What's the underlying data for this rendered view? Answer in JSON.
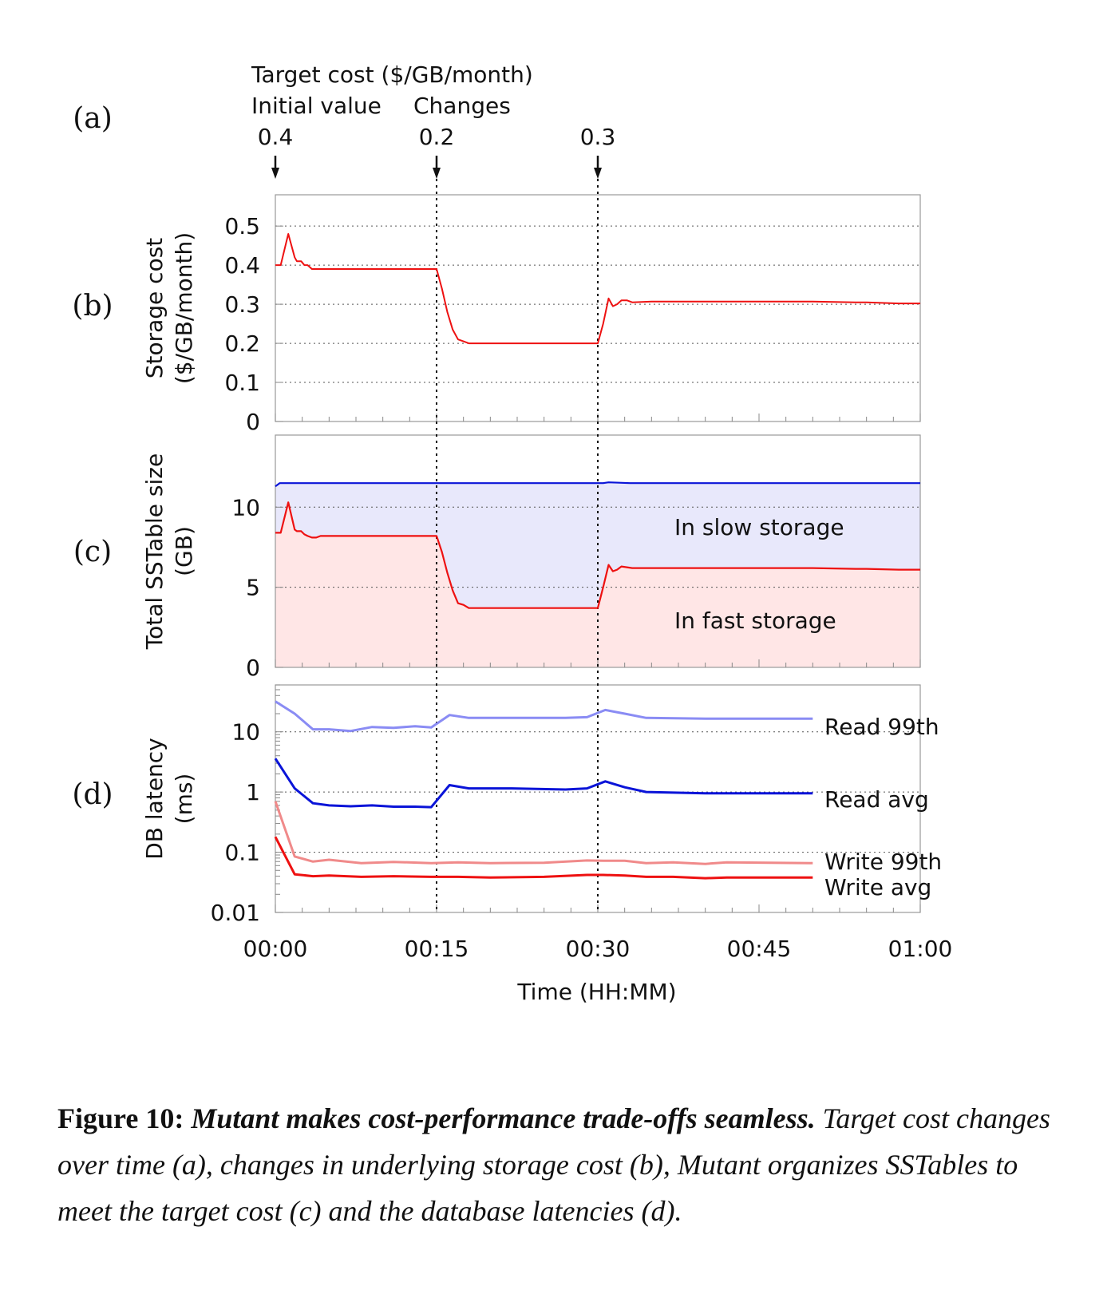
{
  "chart_data": [
    {
      "panel": "(a)",
      "type": "annotation",
      "title_line1": "Target cost ($/GB/month)",
      "col1_header": "Initial value",
      "col2_header": "Changes",
      "markers": [
        {
          "time_min": 0,
          "label": "0.4"
        },
        {
          "time_min": 15,
          "label": "0.2"
        },
        {
          "time_min": 30,
          "label": "0.3"
        }
      ]
    },
    {
      "panel": "(b)",
      "type": "line",
      "ylabel_line1": "Storage cost",
      "ylabel_line2": "($/GB/month)",
      "ylim": [
        0,
        0.58
      ],
      "yticks": [
        {
          "v": 0,
          "label": "0"
        },
        {
          "v": 0.1,
          "label": "0.1"
        },
        {
          "v": 0.2,
          "label": "0.2"
        },
        {
          "v": 0.3,
          "label": "0.3"
        },
        {
          "v": 0.4,
          "label": "0.4"
        },
        {
          "v": 0.5,
          "label": "0.5"
        }
      ],
      "color": "#ee1111",
      "x": [
        0,
        0.5,
        1.2,
        1.8,
        2.0,
        2.4,
        2.7,
        3.0,
        3.4,
        3.8,
        4.2,
        5,
        10,
        15,
        15.5,
        16,
        16.5,
        17,
        17.5,
        18,
        20,
        25,
        30,
        30.5,
        31,
        31.4,
        31.8,
        32.2,
        32.7,
        33.2,
        35,
        40,
        50,
        54,
        55,
        58,
        60
      ],
      "y": [
        0.4,
        0.4,
        0.48,
        0.42,
        0.41,
        0.41,
        0.4,
        0.4,
        0.39,
        0.39,
        0.39,
        0.39,
        0.39,
        0.39,
        0.34,
        0.28,
        0.235,
        0.21,
        0.205,
        0.2,
        0.2,
        0.2,
        0.2,
        0.25,
        0.315,
        0.295,
        0.3,
        0.31,
        0.31,
        0.305,
        0.307,
        0.307,
        0.307,
        0.305,
        0.305,
        0.302,
        0.302
      ]
    },
    {
      "panel": "(c)",
      "type": "area",
      "ylabel_line1": "Total SSTable size",
      "ylabel_line2": "(GB)",
      "ylim": [
        0,
        14.5
      ],
      "yticks": [
        {
          "v": 0,
          "label": "0"
        },
        {
          "v": 5,
          "label": "5"
        },
        {
          "v": 10,
          "label": "10"
        }
      ],
      "series": [
        {
          "name": "In fast storage",
          "color": "#ee1111",
          "fill": "#ffe6e6",
          "x": [
            0,
            0.5,
            1.2,
            1.8,
            2.0,
            2.4,
            2.7,
            3.0,
            3.4,
            3.8,
            4.2,
            5,
            10,
            15,
            15.5,
            16,
            16.5,
            17,
            17.5,
            18,
            20,
            25,
            30,
            30.5,
            31,
            31.4,
            31.8,
            32.2,
            32.7,
            33.2,
            35,
            40,
            50,
            54,
            55,
            58,
            60
          ],
          "y": [
            8.4,
            8.4,
            10.3,
            8.6,
            8.5,
            8.5,
            8.3,
            8.2,
            8.1,
            8.1,
            8.2,
            8.2,
            8.2,
            8.2,
            7.2,
            5.9,
            4.8,
            4.0,
            3.9,
            3.7,
            3.7,
            3.7,
            3.7,
            5.0,
            6.4,
            6.0,
            6.1,
            6.3,
            6.25,
            6.2,
            6.2,
            6.2,
            6.2,
            6.15,
            6.15,
            6.1,
            6.1
          ]
        },
        {
          "name": "In slow storage",
          "color": "#0a14d8",
          "fill": "#e8e8fb",
          "x": [
            0,
            0.4,
            1,
            5,
            15,
            30,
            30.5,
            31,
            33,
            60
          ],
          "y": [
            11.3,
            11.5,
            11.5,
            11.5,
            11.5,
            11.5,
            11.5,
            11.55,
            11.5,
            11.5
          ]
        }
      ],
      "annotations": {
        "slow": "In slow storage",
        "fast": "In fast storage"
      }
    },
    {
      "panel": "(d)",
      "type": "line",
      "yscale": "log",
      "ylabel_line1": "DB latency",
      "ylabel_line2": "(ms)",
      "ylim": [
        0.01,
        60
      ],
      "yticks": [
        {
          "v": 0.01,
          "label": "0.01"
        },
        {
          "v": 0.1,
          "label": "0.1"
        },
        {
          "v": 1,
          "label": "1"
        },
        {
          "v": 10,
          "label": "10"
        }
      ],
      "xlabel": "Time (HH:MM)",
      "xlim": [
        0,
        60
      ],
      "xticks": [
        {
          "v": 0,
          "label": "00:00"
        },
        {
          "v": 15,
          "label": "00:15"
        },
        {
          "v": 30,
          "label": "00:30"
        },
        {
          "v": 45,
          "label": "00:45"
        },
        {
          "v": 60,
          "label": "01:00"
        }
      ],
      "series": [
        {
          "name": "Read 99th",
          "color": "#8a8cf4",
          "x": [
            0,
            1.8,
            3.5,
            5,
            7,
            9,
            11,
            13,
            14.5,
            16.2,
            18,
            22,
            27,
            29,
            30.7,
            32.5,
            34.5,
            40,
            45,
            50
          ],
          "y": [
            32,
            20,
            11,
            11,
            10.3,
            12,
            11.6,
            12.4,
            11.8,
            19,
            17,
            17,
            17,
            17.5,
            23,
            20,
            17,
            16.5,
            16.5,
            16.5
          ]
        },
        {
          "name": "Read avg",
          "color": "#0a14d8",
          "x": [
            0,
            1.8,
            3.5,
            5,
            7,
            9,
            11,
            13,
            14.5,
            16.2,
            18,
            22,
            27,
            29,
            30.7,
            32.5,
            34.5,
            40,
            45,
            50
          ],
          "y": [
            3.6,
            1.15,
            0.65,
            0.6,
            0.58,
            0.6,
            0.57,
            0.57,
            0.56,
            1.3,
            1.15,
            1.15,
            1.1,
            1.15,
            1.5,
            1.2,
            1.0,
            0.95,
            0.95,
            0.95
          ]
        },
        {
          "name": "Write 99th",
          "color": "#f08a8a",
          "x": [
            0,
            1.8,
            3.5,
            5,
            8,
            11,
            14.5,
            17,
            20,
            25,
            29,
            30.5,
            32.5,
            34.5,
            37,
            40,
            42,
            46,
            50
          ],
          "y": [
            0.7,
            0.085,
            0.07,
            0.075,
            0.066,
            0.069,
            0.066,
            0.068,
            0.066,
            0.067,
            0.073,
            0.072,
            0.072,
            0.066,
            0.068,
            0.064,
            0.068,
            0.067,
            0.066
          ]
        },
        {
          "name": "Write avg",
          "color": "#ee1111",
          "x": [
            0,
            1.8,
            3.5,
            5,
            8,
            11,
            14.5,
            17,
            20,
            25,
            29,
            30.5,
            32.5,
            34.5,
            37,
            40,
            42,
            46,
            50
          ],
          "y": [
            0.18,
            0.043,
            0.04,
            0.041,
            0.039,
            0.04,
            0.039,
            0.039,
            0.038,
            0.039,
            0.042,
            0.042,
            0.041,
            0.039,
            0.039,
            0.037,
            0.038,
            0.038,
            0.038
          ]
        }
      ]
    }
  ],
  "panel_labels": [
    "(a)",
    "(b)",
    "(c)",
    "(d)"
  ],
  "caption": {
    "fig_label": "Figure 10:",
    "title": "Mutant makes cost-performance trade-offs seamless.",
    "body": "Target cost changes over time (a), changes in underlying storage cost (b), Mutant organizes SSTables to meet the target cost (c) and the database latencies (d)."
  }
}
